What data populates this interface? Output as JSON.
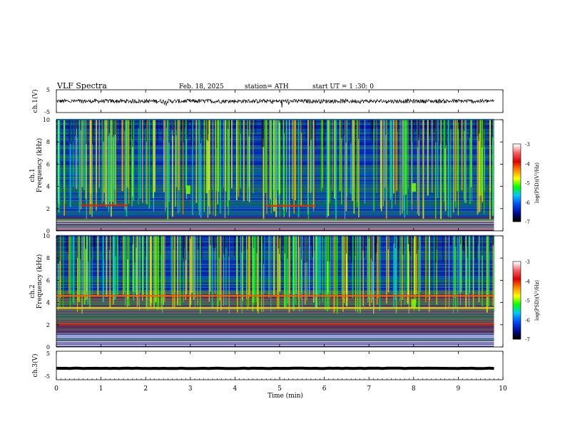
{
  "header": {
    "title": "VLF  Spectra",
    "date": "Feb. 18, 2025",
    "station": "station= ATH",
    "start": "start  UT  =    1  :30: 0"
  },
  "colors": {
    "spectrogram_background": "#0a1a8c",
    "waveform": "#000000",
    "axis": "#000000"
  },
  "colorbar": {
    "label": "log(PSD)(V²/Hz)",
    "ticks": [
      "-3",
      "-4",
      "-5",
      "-6",
      "-7"
    ],
    "stops": [
      "#ffffff",
      "#f06060",
      "#e00000",
      "#ff8800",
      "#ffff00",
      "#00ff00",
      "#00c8ff",
      "#0050ff",
      "#0010a0",
      "#000000"
    ]
  },
  "chart_data": [
    {
      "type": "line",
      "ylabel": "ch.1(V)",
      "ylim": [
        -5,
        5
      ],
      "yticks": [
        "5",
        "-5"
      ],
      "xlim": [
        0,
        10
      ],
      "baseline": 0,
      "grid": false
    },
    {
      "type": "heatmap",
      "ylabel_channel": "ch.1",
      "ylabel": "Frequency  (kHz)",
      "ylim": [
        0,
        10
      ],
      "yticks": [
        "10",
        "8",
        "6",
        "4",
        "2",
        "0"
      ],
      "xlim": [
        0,
        10
      ],
      "data_end_min": 9.8,
      "zlim": [
        -7,
        -3
      ],
      "features": [
        {
          "name": "line",
          "freq_khz": 2.3,
          "t": [
            0.55,
            1.6
          ],
          "level": -4.0
        },
        {
          "name": "line",
          "freq_khz": 2.25,
          "t": [
            4.7,
            5.8
          ],
          "level": -4.0
        },
        {
          "name": "burst",
          "freq_khz": 3.7,
          "t": [
            2.9,
            3.0
          ],
          "level": -5.0
        },
        {
          "name": "burst",
          "freq_khz": 3.9,
          "t": [
            7.95,
            8.05
          ],
          "level": -5.0
        }
      ]
    },
    {
      "type": "heatmap",
      "ylabel_channel": "ch.2",
      "ylabel": "Frequency  (kHz)",
      "ylim": [
        0,
        10
      ],
      "yticks": [
        "10",
        "8",
        "6",
        "4",
        "2",
        "0"
      ],
      "xlim": [
        0,
        10
      ],
      "data_end_min": 9.8,
      "zlim": [
        -7,
        -3
      ],
      "features": [
        {
          "name": "line",
          "freq_khz": 4.6,
          "t": [
            0,
            9.8
          ],
          "level": -4.2
        },
        {
          "name": "line",
          "freq_khz": 3.5,
          "t": [
            0,
            9.8
          ],
          "level": -4.6
        },
        {
          "name": "line",
          "freq_khz": 2.05,
          "t": [
            0,
            9.8
          ],
          "level": -4.0
        },
        {
          "name": "burst",
          "freq_khz": 3.9,
          "t": [
            7.95,
            8.05
          ],
          "level": -5.0
        }
      ]
    },
    {
      "type": "line",
      "ylabel": "ch.3(V)",
      "ylim": [
        -5,
        5
      ],
      "yticks": [
        "5",
        "-5"
      ],
      "xlim": [
        0,
        10
      ],
      "baseline": -1.0,
      "grid": false
    }
  ],
  "xaxis": {
    "label": "Time  (min)",
    "ticks": [
      "0",
      "1",
      "2",
      "3",
      "4",
      "5",
      "6",
      "7",
      "8",
      "9",
      "10"
    ]
  }
}
